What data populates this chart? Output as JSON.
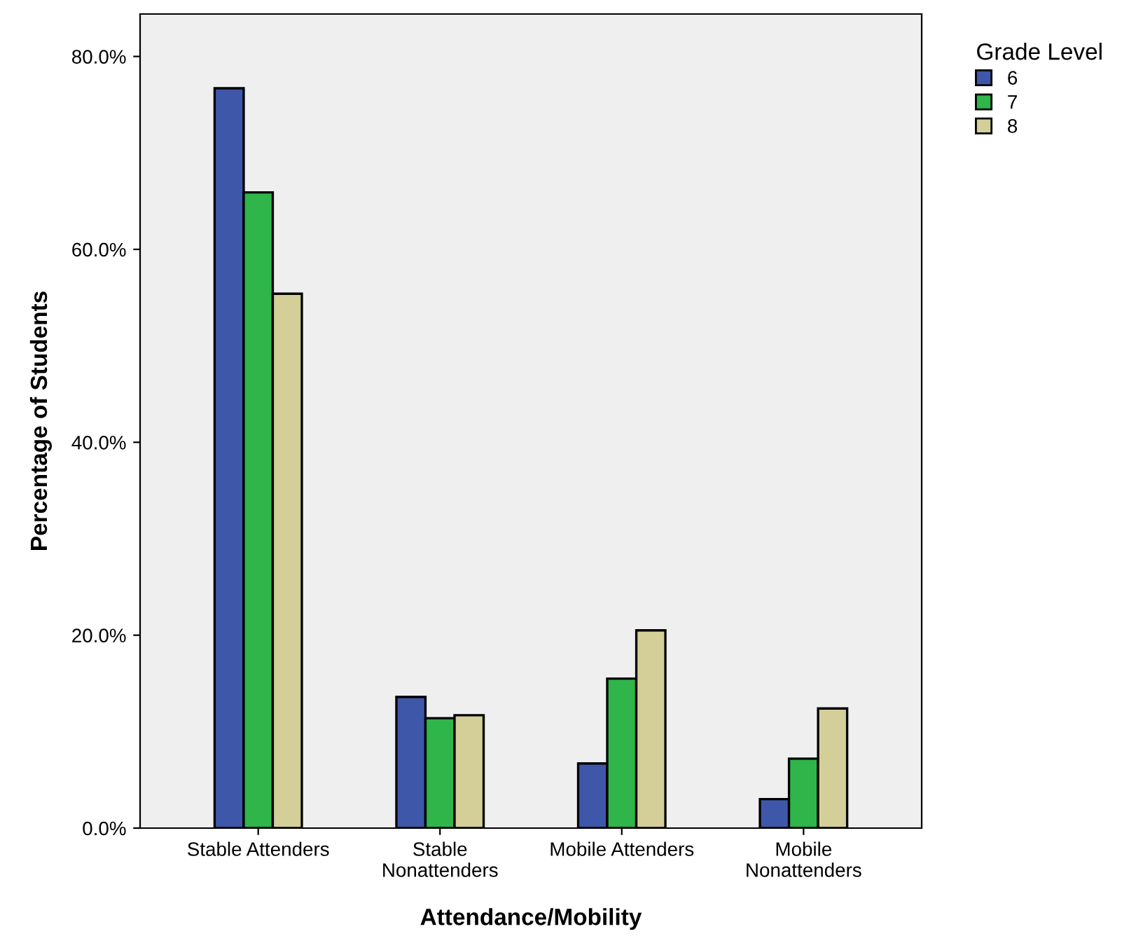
{
  "chart_data": {
    "type": "bar",
    "xlabel": "Attendance/Mobility",
    "ylabel": "Percentage of Students",
    "legend_title": "Grade Level",
    "categories": [
      "Stable Attenders",
      "Stable\nNonattenders",
      "Mobile Attenders",
      "Mobile\nNonattenders"
    ],
    "series": [
      {
        "name": "6",
        "color": "#3f57a9",
        "values": [
          76.7,
          13.6,
          6.7,
          3.0
        ]
      },
      {
        "name": "7",
        "color": "#2fb54a",
        "values": [
          65.9,
          11.4,
          15.5,
          7.2
        ]
      },
      {
        "name": "8",
        "color": "#d4cf99",
        "values": [
          55.4,
          11.7,
          20.5,
          12.4
        ]
      }
    ],
    "ylim": [
      0,
      84.4
    ],
    "yticks": [
      {
        "value": 0,
        "label": "0.0%"
      },
      {
        "value": 20,
        "label": "20.0%"
      },
      {
        "value": 40,
        "label": "40.0%"
      },
      {
        "value": 60,
        "label": "60.0%"
      },
      {
        "value": 80,
        "label": "80.0%"
      }
    ],
    "grid": false,
    "legend": "top right"
  }
}
